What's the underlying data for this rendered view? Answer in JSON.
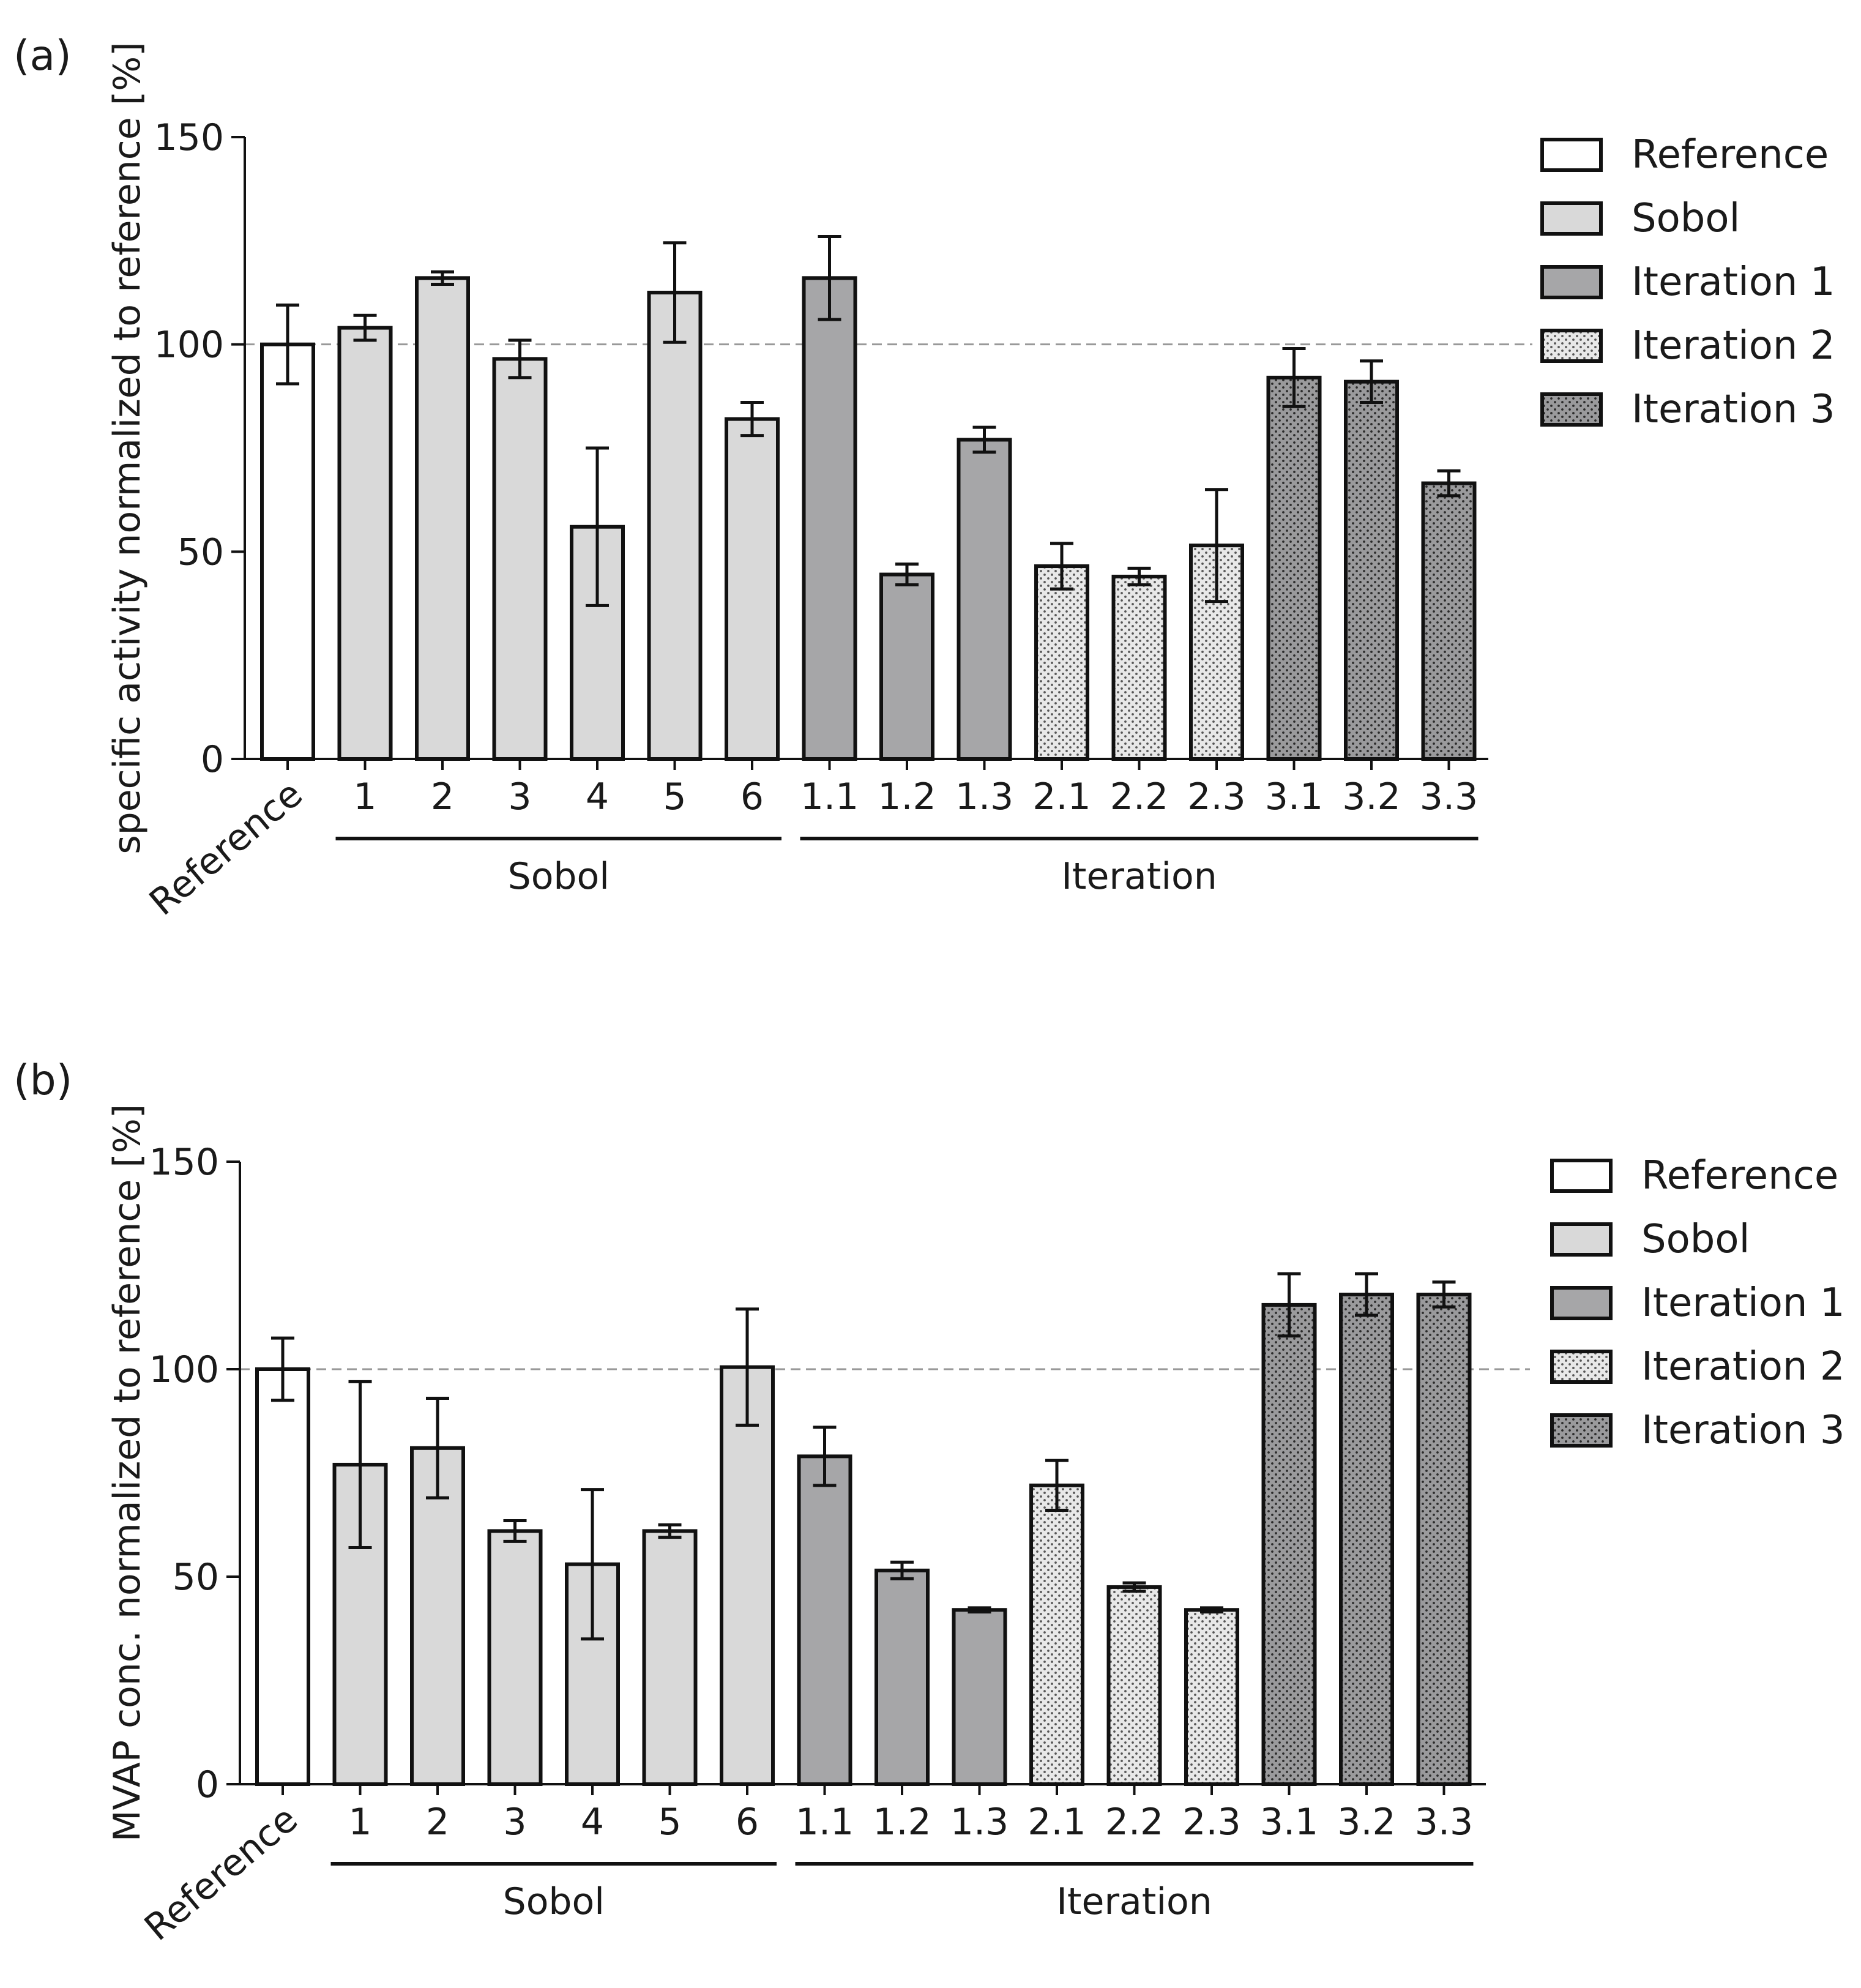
{
  "colors": {
    "reference": "#ffffff",
    "sobol": "#d9d9d9",
    "iteration_1": "#a6a6a8",
    "iteration_2": "#e8e8e8",
    "iteration_3": "#9a9a9c",
    "stroke": "#111111",
    "reference_line": "#999999"
  },
  "group_labels": {
    "sobol": "Sobol",
    "iteration": "Iteration"
  },
  "chart_data": [
    {
      "type": "bar",
      "panel_label": "(a)",
      "ylabel": "specific activity normalized to reference [%]",
      "ylim": [
        0,
        150
      ],
      "yticks": [
        "0",
        "50",
        "100",
        "150"
      ],
      "reference_line": 100,
      "grid": false,
      "legend_position": "top-right",
      "legend": [
        "Reference",
        "Sobol",
        "Iteration 1",
        "Iteration 2",
        "Iteration 3"
      ],
      "categories": [
        "Reference",
        "1",
        "2",
        "3",
        "4",
        "5",
        "6",
        "1.1",
        "1.2",
        "1.3",
        "2.1",
        "2.2",
        "2.3",
        "3.1",
        "3.2",
        "3.3"
      ],
      "groups": [
        "Reference",
        "Sobol",
        "Sobol",
        "Sobol",
        "Sobol",
        "Sobol",
        "Sobol",
        "Iteration 1",
        "Iteration 1",
        "Iteration 1",
        "Iteration 2",
        "Iteration 2",
        "Iteration 2",
        "Iteration 3",
        "Iteration 3",
        "Iteration 3"
      ],
      "values": [
        100,
        104,
        116,
        96.5,
        56,
        112.5,
        82,
        116,
        44.5,
        77,
        46.5,
        44,
        51.5,
        92,
        91,
        66.5
      ],
      "errors": [
        9.5,
        3,
        1.5,
        4.5,
        19,
        12,
        4,
        10,
        2.5,
        3,
        5.5,
        2,
        13.5,
        7,
        5,
        3
      ]
    },
    {
      "type": "bar",
      "panel_label": "(b)",
      "ylabel": "MVAP conc. normalized to reference [%]",
      "ylim": [
        0,
        150
      ],
      "yticks": [
        "0",
        "50",
        "100",
        "150"
      ],
      "reference_line": 100,
      "grid": false,
      "legend_position": "top-right",
      "legend": [
        "Reference",
        "Sobol",
        "Iteration 1",
        "Iteration 2",
        "Iteration 3"
      ],
      "categories": [
        "Reference",
        "1",
        "2",
        "3",
        "4",
        "5",
        "6",
        "1.1",
        "1.2",
        "1.3",
        "2.1",
        "2.2",
        "2.3",
        "3.1",
        "3.2",
        "3.3"
      ],
      "groups": [
        "Reference",
        "Sobol",
        "Sobol",
        "Sobol",
        "Sobol",
        "Sobol",
        "Sobol",
        "Iteration 1",
        "Iteration 1",
        "Iteration 1",
        "Iteration 2",
        "Iteration 2",
        "Iteration 2",
        "Iteration 3",
        "Iteration 3",
        "Iteration 3"
      ],
      "values": [
        100,
        77,
        81,
        61,
        53,
        61,
        100.5,
        79,
        51.5,
        42,
        72,
        47.5,
        42,
        115.5,
        118,
        118
      ],
      "errors": [
        7.5,
        20,
        12,
        2.5,
        18,
        1.5,
        14,
        7,
        2,
        0.5,
        6,
        1,
        0.5,
        7.5,
        5,
        3
      ]
    }
  ]
}
